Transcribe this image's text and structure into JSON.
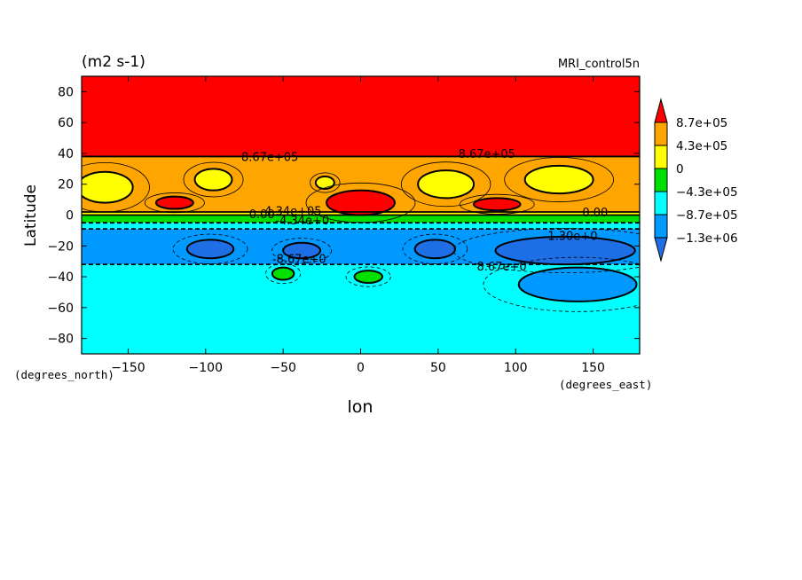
{
  "chart_data": {
    "type": "contour",
    "unit_label": "(m2 s-1)",
    "model_label": "MRI_control5n",
    "xlabel": "lon",
    "ylabel": "Latitude",
    "x_units": "(degrees_east)",
    "y_units": "(degrees_north)",
    "xlim": [
      -180,
      180
    ],
    "ylim": [
      -90,
      90
    ],
    "x_ticks": [
      -150,
      -100,
      -50,
      0,
      50,
      100,
      150
    ],
    "y_ticks": [
      80,
      60,
      40,
      20,
      0,
      -20,
      -40,
      -60,
      -80
    ],
    "colorbar": {
      "labels": [
        "8.7e+05",
        "4.3e+05",
        "0",
        "−4.3e+05",
        "−8.7e+05",
        "−1.3e+06"
      ],
      "colors": [
        "#ff0000",
        "#ffa500",
        "#ffff00",
        "#00e000",
        "#00ffff",
        "#0099ff",
        "#1e6fe6"
      ]
    },
    "bands": [
      {
        "color": "#ff0000",
        "lat_top": 90,
        "lat_bottom": 38
      },
      {
        "color": "#ffa500",
        "lat_top": 38,
        "lat_bottom": 2
      },
      {
        "color": "#ffff00",
        "lat_top": 2,
        "lat_bottom": 0
      },
      {
        "color": "#00e000",
        "lat_top": 0,
        "lat_bottom": -5
      },
      {
        "color": "#00ffff",
        "lat_top": -5,
        "lat_bottom": -9
      },
      {
        "color": "#0099ff",
        "lat_top": -9,
        "lat_bottom": -32
      },
      {
        "color": "#00ffff",
        "lat_top": -32,
        "lat_bottom": -90
      }
    ],
    "regions": [
      {
        "color": "#ffff00",
        "lon": -165,
        "lat": 18,
        "rx": 18,
        "ry": 10
      },
      {
        "color": "#ffff00",
        "lon": -95,
        "lat": 23,
        "rx": 12,
        "ry": 7
      },
      {
        "color": "#ffff00",
        "lon": -23,
        "lat": 21,
        "rx": 6,
        "ry": 4
      },
      {
        "color": "#ffff00",
        "lon": 55,
        "lat": 20,
        "rx": 18,
        "ry": 9
      },
      {
        "color": "#ffff00",
        "lon": 128,
        "lat": 23,
        "rx": 22,
        "ry": 9
      },
      {
        "color": "#ff0000",
        "lon": -120,
        "lat": 8,
        "rx": 12,
        "ry": 4
      },
      {
        "color": "#ff0000",
        "lon": 88,
        "lat": 7,
        "rx": 15,
        "ry": 4
      },
      {
        "color": "#ff0000",
        "lon": 0,
        "lat": 8,
        "rx": 22,
        "ry": 8
      },
      {
        "color": "#1e6fe6",
        "lon": -97,
        "lat": -22,
        "rx": 15,
        "ry": 6
      },
      {
        "color": "#1e6fe6",
        "lon": -38,
        "lat": -23,
        "rx": 12,
        "ry": 5
      },
      {
        "color": "#1e6fe6",
        "lon": 48,
        "lat": -22,
        "rx": 13,
        "ry": 6
      },
      {
        "color": "#1e6fe6",
        "lon": 132,
        "lat": -23,
        "rx": 45,
        "ry": 9
      },
      {
        "color": "#0099ff",
        "lon": 140,
        "lat": -45,
        "rx": 38,
        "ry": 11
      },
      {
        "color": "#00e000",
        "lon": -50,
        "lat": -38,
        "rx": 7,
        "ry": 4
      },
      {
        "color": "#00e000",
        "lon": 5,
        "lat": -40,
        "rx": 9,
        "ry": 4
      }
    ],
    "contour_labels": [
      {
        "text": "8.67e+05",
        "lon": -77,
        "lat": 35
      },
      {
        "text": "8.67e+05",
        "lon": 63,
        "lat": 37
      },
      {
        "text": "4.34e+05",
        "lon": -62,
        "lat": 0
      },
      {
        "text": "0.00",
        "lon": -72,
        "lat": -2
      },
      {
        "text": "-4.34e+0",
        "lon": -55,
        "lat": -6
      },
      {
        "text": "0.00",
        "lon": 143,
        "lat": -1
      },
      {
        "text": "-1.30e+0",
        "lon": 118,
        "lat": -16
      },
      {
        "text": "-8.67e+0",
        "lon": -57,
        "lat": -31
      },
      {
        "text": "8.67e+0",
        "lon": 75,
        "lat": -36
      }
    ]
  }
}
